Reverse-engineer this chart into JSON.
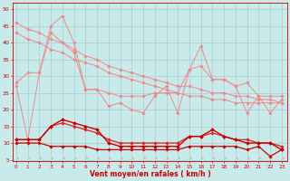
{
  "x": [
    0,
    1,
    2,
    3,
    4,
    5,
    6,
    7,
    8,
    9,
    10,
    11,
    12,
    13,
    14,
    15,
    16,
    17,
    18,
    19,
    20,
    21,
    22,
    23
  ],
  "line_jagged1": [
    27,
    11,
    31,
    45,
    48,
    40,
    26,
    26,
    21,
    22,
    20,
    19,
    24,
    27,
    19,
    32,
    39,
    29,
    29,
    27,
    19,
    24,
    19,
    23
  ],
  "line_jagged2": [
    28,
    31,
    31,
    43,
    40,
    37,
    26,
    26,
    25,
    24,
    24,
    24,
    25,
    25,
    25,
    32,
    33,
    29,
    29,
    27,
    28,
    24,
    24,
    24
  ],
  "line_diag1": [
    43,
    41,
    40,
    38,
    37,
    35,
    34,
    33,
    31,
    30,
    29,
    28,
    27,
    26,
    25,
    24,
    24,
    23,
    23,
    22,
    22,
    22,
    22,
    22
  ],
  "line_diag2": [
    46,
    44,
    43,
    41,
    40,
    38,
    36,
    35,
    33,
    32,
    31,
    30,
    29,
    28,
    27,
    27,
    26,
    25,
    25,
    24,
    24,
    23,
    23,
    22
  ],
  "line_red1": [
    11,
    11,
    11,
    15,
    17,
    16,
    15,
    14,
    10,
    9,
    9,
    9,
    9,
    9,
    9,
    12,
    12,
    14,
    12,
    11,
    10,
    10,
    10,
    8
  ],
  "line_red2": [
    11,
    11,
    11,
    15,
    16,
    15,
    14,
    13,
    11,
    10,
    10,
    10,
    10,
    10,
    10,
    12,
    12,
    13,
    12,
    11,
    11,
    10,
    10,
    9
  ],
  "line_red3": [
    10,
    10,
    10,
    9,
    9,
    9,
    9,
    8,
    8,
    8,
    8,
    8,
    8,
    8,
    8,
    9,
    9,
    9,
    9,
    9,
    8,
    9,
    6,
    8
  ],
  "light_pink": "#f08888",
  "medium_red": "#dd2222",
  "dark_red": "#cc0000",
  "bg_color": "#c8eaea",
  "grid_color": "#aacccc",
  "xlabel": "Vent moyen/en rafales ( km/h )",
  "yticks": [
    5,
    10,
    15,
    20,
    25,
    30,
    35,
    40,
    45,
    50
  ],
  "ylim": [
    4.5,
    52
  ],
  "xlim": [
    -0.3,
    23.5
  ]
}
